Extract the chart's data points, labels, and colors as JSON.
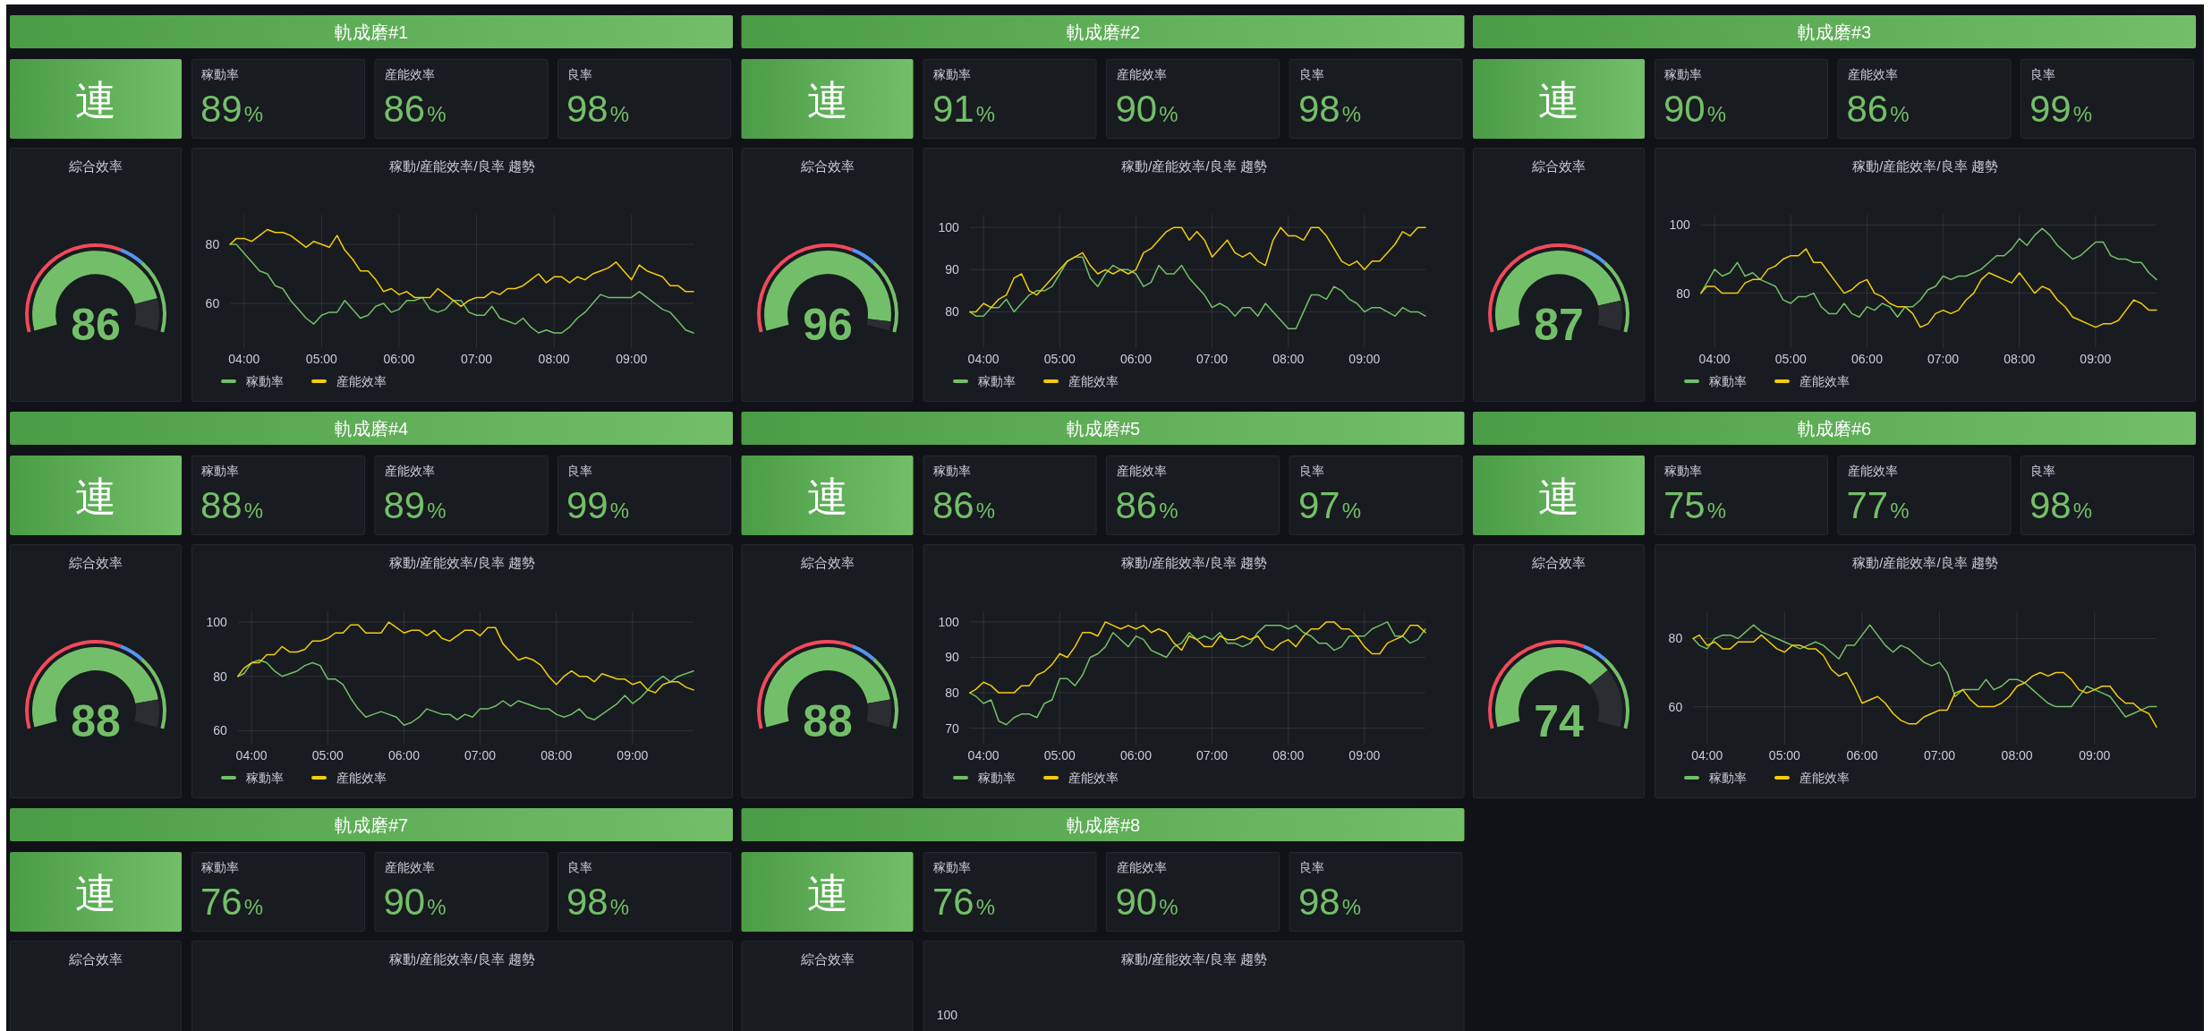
{
  "chart_data": [
    {
      "type": "other",
      "title": "軌成磨#1",
      "annotations": [
        "連"
      ],
      "categories": [
        "稼動率",
        "産能效率",
        "良率"
      ],
      "values": [
        89,
        86,
        98
      ],
      "value_labels": [
        "89%",
        "86%",
        "98%"
      ]
    },
    {
      "type": "donut",
      "title": "綜合效率",
      "series": [
        {
          "values": [
            86,
            14
          ],
          "colors": [
            "#73bf69",
            "#2b2d33"
          ]
        },
        {
          "values": [
            60,
            10,
            30
          ],
          "colors": [
            "#f2495c",
            "#5794f2",
            "#73bf69"
          ]
        }
      ],
      "annotations": [
        "86"
      ]
    },
    {
      "type": "line",
      "title": "稼動/産能效率/良率 趨勢",
      "x": [
        3.82,
        3.9,
        4,
        4.1,
        4.2,
        4.3,
        4.4,
        4.5,
        4.6,
        4.7,
        4.8,
        4.9,
        5,
        5.1,
        5.2,
        5.3,
        5.4,
        5.5,
        5.6,
        5.7,
        5.8,
        5.9,
        6,
        6.1,
        6.2,
        6.3,
        6.4,
        6.5,
        6.6,
        6.7,
        6.8,
        6.9,
        7,
        7.1,
        7.2,
        7.3,
        7.4,
        7.5,
        7.6,
        7.7,
        7.8,
        7.9,
        8,
        8.1,
        8.2,
        8.3,
        8.4,
        8.5,
        8.6,
        8.7,
        8.8,
        8.9,
        9,
        9.1,
        9.2,
        9.3,
        9.4,
        9.5,
        9.6,
        9.7,
        9.8
      ],
      "xlim": [
        3.82,
        9.8
      ],
      "xticks": [
        {
          "value": 4,
          "label": "04:00"
        },
        {
          "value": 5,
          "label": "05:00"
        },
        {
          "value": 6,
          "label": "06:00"
        },
        {
          "value": 7,
          "label": "07:00"
        },
        {
          "value": 8,
          "label": "08:00"
        },
        {
          "value": 9,
          "label": "09:00"
        }
      ],
      "ylim": [
        45,
        90
      ],
      "yticks": [
        60,
        80
      ],
      "grid": true,
      "legend": "bottom",
      "series": [
        {
          "name": "稼動率",
          "color": "#73bf69",
          "values": [
            80,
            80,
            77,
            74,
            71,
            70,
            66,
            65,
            61,
            58,
            55,
            53,
            56,
            57,
            57,
            61,
            58,
            55,
            56,
            59,
            60,
            57,
            58,
            61,
            61,
            62,
            58,
            57,
            58,
            61,
            61,
            57,
            56,
            56,
            59,
            55,
            54,
            53,
            55,
            52,
            50,
            51,
            50,
            50,
            52,
            55,
            57,
            60,
            63,
            62,
            62,
            62,
            62,
            64,
            62,
            60,
            58,
            57,
            54,
            51,
            50
          ]
        },
        {
          "name": "産能效率",
          "color": "#f2cc0c",
          "values": [
            80,
            82,
            82,
            81,
            83,
            85,
            84,
            84,
            83,
            81,
            79,
            81,
            80,
            79,
            83,
            78,
            75,
            71,
            71,
            68,
            64,
            65,
            63,
            64,
            62,
            62,
            62,
            65,
            63,
            61,
            59,
            61,
            62,
            62,
            64,
            63,
            65,
            65,
            66,
            68,
            70,
            67,
            69,
            69,
            67,
            69,
            68,
            70,
            71,
            72,
            74,
            71,
            68,
            73,
            71,
            70,
            69,
            66,
            66,
            64,
            64
          ]
        }
      ]
    },
    {
      "type": "other",
      "title": "軌成磨#2",
      "annotations": [
        "連"
      ],
      "categories": [
        "稼動率",
        "産能效率",
        "良率"
      ],
      "values": [
        91,
        90,
        98
      ],
      "value_labels": [
        "91%",
        "90%",
        "98%"
      ]
    },
    {
      "type": "donut",
      "title": "綜合效率",
      "series": [
        {
          "values": [
            96,
            4
          ],
          "colors": [
            "#73bf69",
            "#2b2d33"
          ]
        },
        {
          "values": [
            60,
            10,
            30
          ],
          "colors": [
            "#f2495c",
            "#5794f2",
            "#73bf69"
          ]
        }
      ],
      "annotations": [
        "96"
      ]
    },
    {
      "type": "line",
      "title": "稼動/産能效率/良率 趨勢",
      "x": [
        3.82,
        3.9,
        4,
        4.1,
        4.2,
        4.3,
        4.4,
        4.5,
        4.6,
        4.7,
        4.8,
        4.9,
        5,
        5.1,
        5.2,
        5.3,
        5.4,
        5.5,
        5.6,
        5.7,
        5.8,
        5.9,
        6,
        6.1,
        6.2,
        6.3,
        6.4,
        6.5,
        6.6,
        6.7,
        6.8,
        6.9,
        7,
        7.1,
        7.2,
        7.3,
        7.4,
        7.5,
        7.6,
        7.7,
        7.8,
        7.9,
        8,
        8.1,
        8.2,
        8.3,
        8.4,
        8.5,
        8.6,
        8.7,
        8.8,
        8.9,
        9,
        9.1,
        9.2,
        9.3,
        9.4,
        9.5,
        9.6,
        9.7,
        9.8
      ],
      "xlim": [
        3.82,
        9.8
      ],
      "xticks": [
        {
          "value": 4,
          "label": "04:00"
        },
        {
          "value": 5,
          "label": "05:00"
        },
        {
          "value": 6,
          "label": "06:00"
        },
        {
          "value": 7,
          "label": "07:00"
        },
        {
          "value": 8,
          "label": "08:00"
        },
        {
          "value": 9,
          "label": "09:00"
        }
      ],
      "ylim": [
        71.5,
        103
      ],
      "yticks": [
        80,
        90,
        100
      ],
      "grid": true,
      "legend": "bottom",
      "series": [
        {
          "name": "稼動率",
          "color": "#73bf69",
          "values": [
            80,
            79,
            79,
            81,
            81,
            83,
            80,
            82,
            84,
            85,
            85,
            86,
            89,
            92,
            93,
            93,
            88,
            86,
            89,
            91,
            90,
            90,
            89,
            86,
            87,
            91,
            89,
            89,
            91,
            88,
            86,
            84,
            81,
            82,
            81,
            79,
            81,
            81,
            79,
            82,
            80,
            78,
            76,
            76,
            80,
            84,
            84,
            83,
            86,
            85,
            83,
            82,
            80,
            81,
            81,
            80,
            79,
            81,
            80,
            80,
            79
          ]
        },
        {
          "name": "産能效率",
          "color": "#f2cc0c",
          "values": [
            80,
            80,
            82,
            81,
            83,
            84,
            88,
            89,
            85,
            84,
            86,
            88,
            90,
            92,
            93,
            94,
            91,
            89,
            90,
            89,
            90,
            89,
            90,
            94,
            95,
            97,
            99,
            100,
            100,
            97,
            99,
            97,
            93,
            95,
            97,
            94,
            93,
            94,
            92,
            91,
            97,
            100,
            98,
            98,
            97,
            100,
            100,
            98,
            95,
            92,
            91,
            92,
            90,
            92,
            92,
            94,
            96,
            99,
            98,
            100,
            100
          ]
        }
      ]
    },
    {
      "type": "other",
      "title": "軌成磨#3",
      "annotations": [
        "連"
      ],
      "categories": [
        "稼動率",
        "産能效率",
        "良率"
      ],
      "values": [
        90,
        86,
        99
      ],
      "value_labels": [
        "90%",
        "86%",
        "99%"
      ]
    },
    {
      "type": "donut",
      "title": "綜合效率",
      "series": [
        {
          "values": [
            87,
            13
          ],
          "colors": [
            "#73bf69",
            "#2b2d33"
          ]
        },
        {
          "values": [
            60,
            10,
            30
          ],
          "colors": [
            "#f2495c",
            "#5794f2",
            "#73bf69"
          ]
        }
      ],
      "annotations": [
        "87"
      ]
    },
    {
      "type": "line",
      "title": "稼動/産能效率/良率 趨勢",
      "x": [
        3.82,
        3.9,
        4,
        4.1,
        4.2,
        4.3,
        4.4,
        4.5,
        4.6,
        4.7,
        4.8,
        4.9,
        5,
        5.1,
        5.2,
        5.3,
        5.4,
        5.5,
        5.6,
        5.7,
        5.8,
        5.9,
        6,
        6.1,
        6.2,
        6.3,
        6.4,
        6.5,
        6.6,
        6.7,
        6.8,
        6.9,
        7,
        7.1,
        7.2,
        7.3,
        7.4,
        7.5,
        7.6,
        7.7,
        7.8,
        7.9,
        8,
        8.1,
        8.2,
        8.3,
        8.4,
        8.5,
        8.6,
        8.7,
        8.8,
        8.9,
        9,
        9.1,
        9.2,
        9.3,
        9.4,
        9.5,
        9.6,
        9.7,
        9.8
      ],
      "xlim": [
        3.82,
        9.8
      ],
      "xticks": [
        {
          "value": 4,
          "label": "04:00"
        },
        {
          "value": 5,
          "label": "05:00"
        },
        {
          "value": 6,
          "label": "06:00"
        },
        {
          "value": 7,
          "label": "07:00"
        },
        {
          "value": 8,
          "label": "08:00"
        },
        {
          "value": 9,
          "label": "09:00"
        }
      ],
      "ylim": [
        64,
        103
      ],
      "yticks": [
        80,
        100
      ],
      "grid": true,
      "legend": "bottom",
      "series": [
        {
          "name": "稼動率",
          "color": "#73bf69",
          "values": [
            80,
            83,
            87,
            85,
            86,
            89,
            85,
            86,
            84,
            83,
            82,
            78,
            77,
            79,
            79,
            80,
            76,
            74,
            74,
            77,
            74,
            73,
            76,
            75,
            77,
            76,
            73,
            76,
            76,
            78,
            81,
            82,
            85,
            84,
            85,
            85,
            86,
            87,
            89,
            91,
            91,
            93,
            96,
            94,
            97,
            99,
            97,
            94,
            92,
            90,
            91,
            93,
            95,
            95,
            91,
            90,
            90,
            89,
            89,
            86,
            84
          ]
        },
        {
          "name": "産能效率",
          "color": "#f2cc0c",
          "values": [
            80,
            82,
            82,
            80,
            80,
            80,
            83,
            84,
            84,
            87,
            88,
            90,
            91,
            91,
            93,
            89,
            89,
            86,
            83,
            80,
            81,
            83,
            84,
            80,
            79,
            77,
            76,
            76,
            74,
            70,
            71,
            74,
            75,
            74,
            75,
            78,
            80,
            84,
            86,
            85,
            84,
            83,
            86,
            83,
            80,
            82,
            81,
            78,
            76,
            73,
            72,
            71,
            70,
            71,
            71,
            72,
            75,
            78,
            77,
            75,
            75
          ]
        }
      ]
    },
    {
      "type": "other",
      "title": "軌成磨#4",
      "annotations": [
        "連"
      ],
      "categories": [
        "稼動率",
        "産能效率",
        "良率"
      ],
      "values": [
        88,
        89,
        99
      ],
      "value_labels": [
        "88%",
        "89%",
        "99%"
      ]
    },
    {
      "type": "donut",
      "title": "綜合效率",
      "series": [
        {
          "values": [
            88,
            12
          ],
          "colors": [
            "#73bf69",
            "#2b2d33"
          ]
        },
        {
          "values": [
            60,
            10,
            30
          ],
          "colors": [
            "#f2495c",
            "#5794f2",
            "#73bf69"
          ]
        }
      ],
      "annotations": [
        "88"
      ]
    },
    {
      "type": "line",
      "title": "稼動/産能效率/良率 趨勢",
      "x": [
        3.82,
        3.9,
        4,
        4.1,
        4.2,
        4.3,
        4.4,
        4.5,
        4.6,
        4.7,
        4.8,
        4.9,
        5,
        5.1,
        5.2,
        5.3,
        5.4,
        5.5,
        5.6,
        5.7,
        5.8,
        5.9,
        6,
        6.1,
        6.2,
        6.3,
        6.4,
        6.5,
        6.6,
        6.7,
        6.8,
        6.9,
        7,
        7.1,
        7.2,
        7.3,
        7.4,
        7.5,
        7.6,
        7.7,
        7.8,
        7.9,
        8,
        8.1,
        8.2,
        8.3,
        8.4,
        8.5,
        8.6,
        8.7,
        8.8,
        8.9,
        9,
        9.1,
        9.2,
        9.3,
        9.4,
        9.5,
        9.6,
        9.7,
        9.8
      ],
      "xlim": [
        3.82,
        9.8
      ],
      "xticks": [
        {
          "value": 4,
          "label": "04:00"
        },
        {
          "value": 5,
          "label": "05:00"
        },
        {
          "value": 6,
          "label": "06:00"
        },
        {
          "value": 7,
          "label": "07:00"
        },
        {
          "value": 8,
          "label": "08:00"
        },
        {
          "value": 9,
          "label": "09:00"
        }
      ],
      "ylim": [
        55,
        104
      ],
      "yticks": [
        60,
        80,
        100
      ],
      "grid": true,
      "legend": "bottom",
      "series": [
        {
          "name": "稼動率",
          "color": "#73bf69",
          "values": [
            80,
            81,
            85,
            86,
            85,
            82,
            80,
            81,
            82,
            84,
            85,
            84,
            79,
            79,
            77,
            72,
            68,
            65,
            66,
            67,
            66,
            65,
            62,
            63,
            65,
            68,
            67,
            66,
            66,
            64,
            66,
            65,
            68,
            68,
            69,
            71,
            69,
            71,
            70,
            69,
            68,
            68,
            66,
            65,
            66,
            68,
            65,
            64,
            66,
            68,
            70,
            73,
            70,
            72,
            75,
            78,
            80,
            78,
            80,
            81,
            82
          ]
        },
        {
          "name": "産能效率",
          "color": "#f2cc0c",
          "values": [
            80,
            83,
            85,
            85,
            88,
            88,
            91,
            89,
            89,
            90,
            93,
            93,
            94,
            96,
            96,
            99,
            99,
            96,
            96,
            96,
            100,
            98,
            96,
            97,
            97,
            95,
            97,
            94,
            93,
            95,
            97,
            97,
            95,
            98,
            98,
            92,
            89,
            86,
            87,
            86,
            84,
            80,
            77,
            80,
            82,
            80,
            80,
            78,
            81,
            80,
            79,
            79,
            77,
            78,
            75,
            74,
            77,
            78,
            78,
            76,
            75
          ]
        }
      ]
    },
    {
      "type": "other",
      "title": "軌成磨#5",
      "annotations": [
        "連"
      ],
      "categories": [
        "稼動率",
        "産能效率",
        "良率"
      ],
      "values": [
        86,
        86,
        97
      ],
      "value_labels": [
        "86%",
        "86%",
        "97%"
      ]
    },
    {
      "type": "donut",
      "title": "綜合效率",
      "series": [
        {
          "values": [
            88,
            12
          ],
          "colors": [
            "#73bf69",
            "#2b2d33"
          ]
        },
        {
          "values": [
            60,
            10,
            30
          ],
          "colors": [
            "#f2495c",
            "#5794f2",
            "#73bf69"
          ]
        }
      ],
      "annotations": [
        "88"
      ]
    },
    {
      "type": "line",
      "title": "稼動/産能效率/良率 趨勢",
      "x": [
        3.82,
        3.9,
        4,
        4.1,
        4.2,
        4.3,
        4.4,
        4.5,
        4.6,
        4.7,
        4.8,
        4.9,
        5,
        5.1,
        5.2,
        5.3,
        5.4,
        5.5,
        5.6,
        5.7,
        5.8,
        5.9,
        6,
        6.1,
        6.2,
        6.3,
        6.4,
        6.5,
        6.6,
        6.7,
        6.8,
        6.9,
        7,
        7.1,
        7.2,
        7.3,
        7.4,
        7.5,
        7.6,
        7.7,
        7.8,
        7.9,
        8,
        8.1,
        8.2,
        8.3,
        8.4,
        8.5,
        8.6,
        8.7,
        8.8,
        8.9,
        9,
        9.1,
        9.2,
        9.3,
        9.4,
        9.5,
        9.6,
        9.7,
        9.8
      ],
      "xlim": [
        3.82,
        9.8
      ],
      "xticks": [
        {
          "value": 4,
          "label": "04:00"
        },
        {
          "value": 5,
          "label": "05:00"
        },
        {
          "value": 6,
          "label": "06:00"
        },
        {
          "value": 7,
          "label": "07:00"
        },
        {
          "value": 8,
          "label": "08:00"
        },
        {
          "value": 9,
          "label": "09:00"
        }
      ],
      "ylim": [
        65.5,
        103
      ],
      "yticks": [
        70,
        80,
        90,
        100
      ],
      "grid": true,
      "legend": "bottom",
      "series": [
        {
          "name": "稼動率",
          "color": "#73bf69",
          "values": [
            80,
            79,
            77,
            78,
            72,
            71,
            73,
            74,
            74,
            73,
            77,
            78,
            84,
            84,
            82,
            85,
            90,
            91,
            93,
            97,
            95,
            93,
            96,
            95,
            92,
            91,
            90,
            93,
            94,
            97,
            95,
            96,
            95,
            97,
            94,
            94,
            93,
            94,
            97,
            99,
            99,
            99,
            98,
            99,
            97,
            96,
            94,
            94,
            92,
            93,
            96,
            96,
            96,
            98,
            99,
            100,
            96,
            96,
            94,
            95,
            98
          ]
        },
        {
          "name": "産能效率",
          "color": "#f2cc0c",
          "values": [
            80,
            81,
            83,
            82,
            80,
            80,
            80,
            82,
            82,
            85,
            86,
            88,
            91,
            90,
            93,
            97,
            97,
            96,
            100,
            99,
            98,
            99,
            98,
            99,
            97,
            98,
            97,
            94,
            92,
            96,
            95,
            93,
            93,
            96,
            95,
            95,
            96,
            95,
            96,
            93,
            92,
            94,
            95,
            93,
            96,
            98,
            98,
            100,
            100,
            98,
            98,
            96,
            93,
            91,
            91,
            94,
            95,
            96,
            99,
            99,
            97
          ]
        }
      ]
    },
    {
      "type": "other",
      "title": "軌成磨#6",
      "annotations": [
        "連"
      ],
      "categories": [
        "稼動率",
        "産能效率",
        "良率"
      ],
      "values": [
        75,
        77,
        98
      ],
      "value_labels": [
        "75%",
        "77%",
        "98%"
      ]
    },
    {
      "type": "donut",
      "title": "綜合效率",
      "series": [
        {
          "values": [
            74,
            26
          ],
          "colors": [
            "#73bf69",
            "#2b2d33"
          ]
        },
        {
          "values": [
            60,
            10,
            30
          ],
          "colors": [
            "#f2495c",
            "#5794f2",
            "#73bf69"
          ]
        }
      ],
      "annotations": [
        "74"
      ]
    },
    {
      "type": "line",
      "title": "稼動/産能效率/良率 趨勢",
      "x": [
        3.82,
        3.9,
        4,
        4.1,
        4.2,
        4.3,
        4.4,
        4.5,
        4.6,
        4.7,
        4.8,
        4.9,
        5,
        5.1,
        5.2,
        5.3,
        5.4,
        5.5,
        5.6,
        5.7,
        5.8,
        5.9,
        6,
        6.1,
        6.2,
        6.3,
        6.4,
        6.5,
        6.6,
        6.7,
        6.8,
        6.9,
        7,
        7.1,
        7.2,
        7.3,
        7.4,
        7.5,
        7.6,
        7.7,
        7.8,
        7.9,
        8,
        8.1,
        8.2,
        8.3,
        8.4,
        8.5,
        8.6,
        8.7,
        8.8,
        8.9,
        9,
        9.1,
        9.2,
        9.3,
        9.4,
        9.5,
        9.6,
        9.7,
        9.8
      ],
      "xlim": [
        3.82,
        9.8
      ],
      "xticks": [
        {
          "value": 4,
          "label": "04:00"
        },
        {
          "value": 5,
          "label": "05:00"
        },
        {
          "value": 6,
          "label": "06:00"
        },
        {
          "value": 7,
          "label": "07:00"
        },
        {
          "value": 8,
          "label": "08:00"
        },
        {
          "value": 9,
          "label": "09:00"
        }
      ],
      "ylim": [
        49,
        88
      ],
      "yticks": [
        60,
        80
      ],
      "grid": true,
      "legend": "bottom",
      "series": [
        {
          "name": "稼動率",
          "color": "#73bf69",
          "values": [
            80,
            78,
            77,
            80,
            81,
            81,
            80,
            82,
            84,
            82,
            81,
            80,
            79,
            78,
            77,
            78,
            79,
            78,
            76,
            74,
            78,
            78,
            81,
            84,
            81,
            78,
            76,
            78,
            77,
            75,
            73,
            72,
            73,
            70,
            63,
            65,
            65,
            65,
            68,
            65,
            66,
            68,
            68,
            67,
            65,
            63,
            61,
            60,
            60,
            60,
            63,
            66,
            65,
            64,
            63,
            60,
            57,
            58,
            59,
            60,
            60
          ]
        },
        {
          "name": "産能效率",
          "color": "#f2cc0c",
          "values": [
            80,
            81,
            78,
            79,
            77,
            77,
            79,
            79,
            79,
            81,
            79,
            77,
            76,
            78,
            78,
            77,
            77,
            75,
            71,
            69,
            70,
            66,
            61,
            62,
            63,
            61,
            58,
            56,
            55,
            55,
            57,
            58,
            59,
            59,
            64,
            65,
            62,
            60,
            60,
            60,
            61,
            63,
            66,
            67,
            69,
            70,
            69,
            70,
            70,
            68,
            65,
            64,
            65,
            66,
            66,
            63,
            61,
            61,
            59,
            58,
            54
          ]
        }
      ]
    },
    {
      "type": "other",
      "title": "軌成磨#7",
      "annotations": [
        "連"
      ],
      "categories": [
        "稼動率",
        "産能效率",
        "良率"
      ],
      "values": [
        76,
        90,
        98
      ],
      "value_labels": [
        "76%",
        "90%",
        "98%"
      ]
    },
    {
      "type": "other",
      "title": "綜合效率"
    },
    {
      "type": "other",
      "title": "稼動/産能效率/良率 趨勢"
    },
    {
      "type": "other",
      "title": "軌成磨#8",
      "annotations": [
        "連"
      ],
      "categories": [
        "稼動率",
        "産能效率",
        "良率"
      ],
      "values": [
        76,
        90,
        98
      ],
      "value_labels": [
        "76%",
        "90%",
        "98%"
      ]
    },
    {
      "type": "other",
      "title": "綜合效率"
    },
    {
      "type": "other",
      "title": "稼動/産能效率/良率 趨勢",
      "annotations": [
        "100"
      ]
    }
  ]
}
